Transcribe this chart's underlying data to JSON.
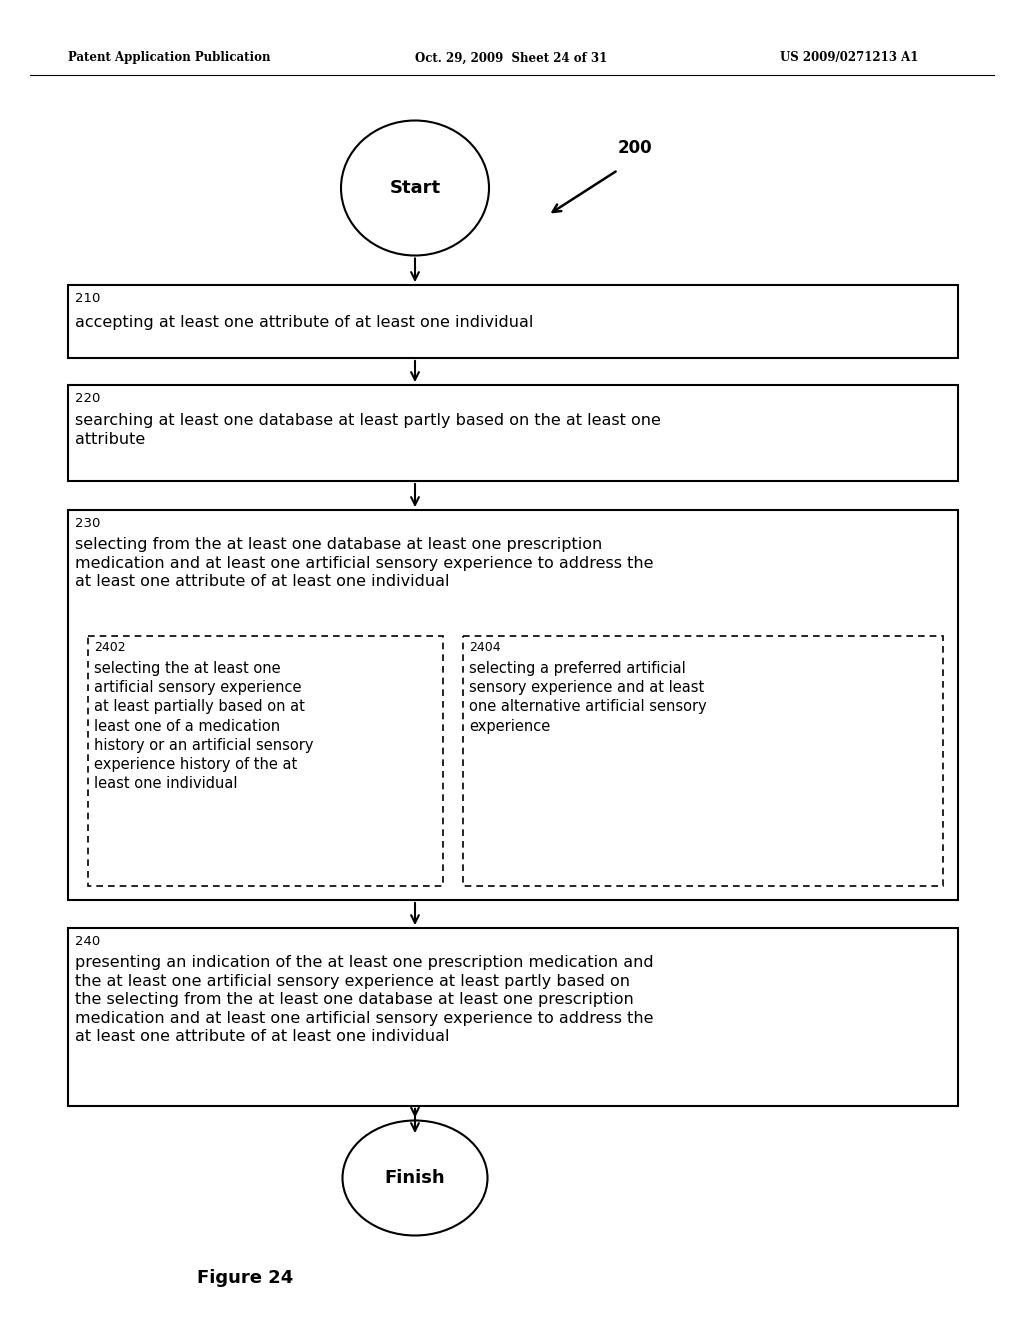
{
  "header_left": "Patent Application Publication",
  "header_mid": "Oct. 29, 2009  Sheet 24 of 31",
  "header_right": "US 2009/0271213 A1",
  "figure_label": "Figure 24",
  "diagram_label": "200",
  "start_label": "Start",
  "finish_label": "Finish",
  "box210_label": "210",
  "box210_text": "accepting at least one attribute of at least one individual",
  "box220_label": "220",
  "box220_text": "searching at least one database at least partly based on the at least one\nattribute",
  "box230_label": "230",
  "box230_text": "selecting from the at least one database at least one prescription\nmedication and at least one artificial sensory experience to address the\nat least one attribute of at least one individual",
  "box2402_label": "2402",
  "box2402_text": "selecting the at least one\nartificial sensory experience\nat least partially based on at\nleast one of a medication\nhistory or an artificial sensory\nexperience history of the at\nleast one individual",
  "box2404_label": "2404",
  "box2404_text": "selecting a preferred artificial\nsensory experience and at least\none alternative artificial sensory\nexperience",
  "box240_label": "240",
  "box240_text": "presenting an indication of the at least one prescription medication and\nthe at least one artificial sensory experience at least partly based on\nthe selecting from the at least one database at least one prescription\nmedication and at least one artificial sensory experience to address the\nat least one attribute of at least one individual",
  "bg_color": "#ffffff",
  "text_color": "#000000",
  "box_edge_color": "#000000"
}
